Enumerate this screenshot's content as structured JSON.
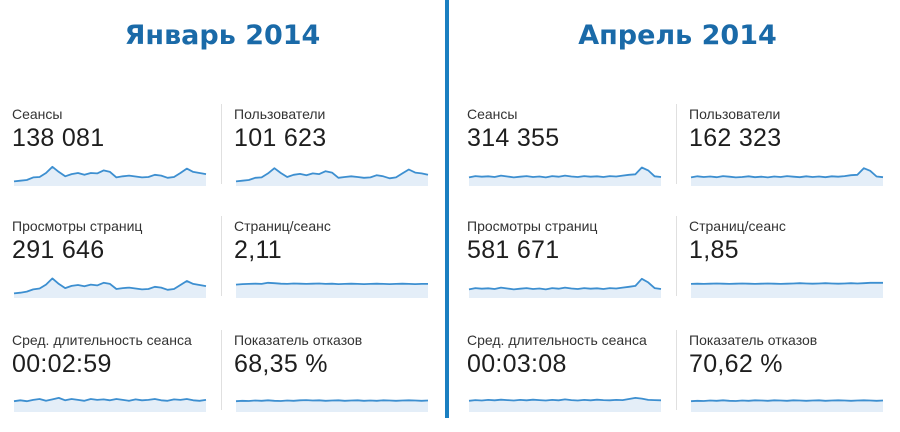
{
  "panels": [
    {
      "title": "Январь 2014",
      "metrics": [
        {
          "label": "Сеансы",
          "value": "138 081",
          "trend": [
            0.12,
            0.15,
            0.18,
            0.3,
            0.32,
            0.5,
            0.78,
            0.55,
            0.35,
            0.45,
            0.5,
            0.42,
            0.5,
            0.48,
            0.62,
            0.55,
            0.3,
            0.35,
            0.38,
            0.34,
            0.3,
            0.32,
            0.42,
            0.38,
            0.28,
            0.32,
            0.5,
            0.7,
            0.55,
            0.5,
            0.45
          ]
        },
        {
          "label": "Пользователи",
          "value": "101 623",
          "trend": [
            0.12,
            0.15,
            0.18,
            0.28,
            0.3,
            0.48,
            0.72,
            0.5,
            0.32,
            0.42,
            0.46,
            0.4,
            0.48,
            0.45,
            0.58,
            0.52,
            0.28,
            0.32,
            0.35,
            0.32,
            0.28,
            0.3,
            0.4,
            0.35,
            0.26,
            0.3,
            0.48,
            0.66,
            0.52,
            0.48,
            0.42
          ]
        },
        {
          "label": "Просмотры страниц",
          "value": "291 646",
          "trend": [
            0.12,
            0.15,
            0.2,
            0.3,
            0.34,
            0.52,
            0.8,
            0.55,
            0.36,
            0.46,
            0.5,
            0.44,
            0.52,
            0.48,
            0.6,
            0.55,
            0.32,
            0.36,
            0.38,
            0.34,
            0.3,
            0.32,
            0.42,
            0.38,
            0.28,
            0.32,
            0.5,
            0.68,
            0.55,
            0.5,
            0.45
          ]
        },
        {
          "label": "Страниц/сеанс",
          "value": "2,11",
          "trend": [
            0.52,
            0.54,
            0.55,
            0.56,
            0.55,
            0.6,
            0.58,
            0.56,
            0.55,
            0.57,
            0.56,
            0.55,
            0.56,
            0.57,
            0.55,
            0.56,
            0.54,
            0.55,
            0.56,
            0.55,
            0.54,
            0.55,
            0.56,
            0.55,
            0.54,
            0.55,
            0.56,
            0.55,
            0.54,
            0.55,
            0.55
          ]
        },
        {
          "label": "Сред. длительность сеанса",
          "value": "00:02:59",
          "trend": [
            0.4,
            0.44,
            0.4,
            0.46,
            0.5,
            0.42,
            0.48,
            0.55,
            0.44,
            0.5,
            0.46,
            0.42,
            0.5,
            0.46,
            0.48,
            0.44,
            0.5,
            0.46,
            0.42,
            0.48,
            0.44,
            0.46,
            0.5,
            0.44,
            0.42,
            0.48,
            0.46,
            0.5,
            0.44,
            0.42,
            0.46
          ]
        },
        {
          "label": "Показатель отказов",
          "value": "68,35 %",
          "trend": [
            0.4,
            0.42,
            0.41,
            0.43,
            0.42,
            0.44,
            0.42,
            0.41,
            0.43,
            0.42,
            0.44,
            0.45,
            0.43,
            0.44,
            0.42,
            0.43,
            0.44,
            0.42,
            0.43,
            0.44,
            0.42,
            0.43,
            0.42,
            0.44,
            0.43,
            0.42,
            0.43,
            0.44,
            0.43,
            0.42,
            0.43
          ]
        }
      ]
    },
    {
      "title": "Апрель 2014",
      "metrics": [
        {
          "label": "Сеансы",
          "value": "314 355",
          "trend": [
            0.3,
            0.36,
            0.33,
            0.35,
            0.32,
            0.38,
            0.34,
            0.3,
            0.33,
            0.36,
            0.32,
            0.34,
            0.3,
            0.36,
            0.33,
            0.38,
            0.34,
            0.32,
            0.36,
            0.33,
            0.35,
            0.32,
            0.36,
            0.34,
            0.38,
            0.42,
            0.44,
            0.75,
            0.62,
            0.35,
            0.32
          ]
        },
        {
          "label": "Пользователи",
          "value": "162 323",
          "trend": [
            0.3,
            0.35,
            0.32,
            0.34,
            0.31,
            0.36,
            0.33,
            0.3,
            0.32,
            0.35,
            0.31,
            0.33,
            0.3,
            0.34,
            0.32,
            0.36,
            0.33,
            0.31,
            0.35,
            0.32,
            0.34,
            0.31,
            0.35,
            0.33,
            0.36,
            0.4,
            0.42,
            0.72,
            0.6,
            0.34,
            0.31
          ]
        },
        {
          "label": "Просмотры страниц",
          "value": "581 671",
          "trend": [
            0.3,
            0.36,
            0.33,
            0.35,
            0.32,
            0.38,
            0.34,
            0.3,
            0.33,
            0.36,
            0.32,
            0.34,
            0.3,
            0.36,
            0.33,
            0.38,
            0.34,
            0.32,
            0.36,
            0.33,
            0.35,
            0.32,
            0.36,
            0.34,
            0.38,
            0.42,
            0.46,
            0.78,
            0.62,
            0.36,
            0.32
          ]
        },
        {
          "label": "Страниц/сеанс",
          "value": "1,85",
          "trend": [
            0.55,
            0.56,
            0.55,
            0.56,
            0.57,
            0.56,
            0.55,
            0.56,
            0.57,
            0.56,
            0.55,
            0.56,
            0.57,
            0.56,
            0.55,
            0.56,
            0.57,
            0.58,
            0.57,
            0.56,
            0.57,
            0.58,
            0.57,
            0.56,
            0.57,
            0.58,
            0.57,
            0.58,
            0.6,
            0.6,
            0.6
          ]
        },
        {
          "label": "Сред. длительность сеанса",
          "value": "00:03:08",
          "trend": [
            0.42,
            0.45,
            0.43,
            0.46,
            0.44,
            0.47,
            0.45,
            0.43,
            0.46,
            0.44,
            0.47,
            0.45,
            0.43,
            0.46,
            0.44,
            0.48,
            0.45,
            0.43,
            0.46,
            0.44,
            0.47,
            0.45,
            0.44,
            0.46,
            0.45,
            0.5,
            0.55,
            0.52,
            0.46,
            0.45,
            0.44
          ]
        },
        {
          "label": "Показатель отказов",
          "value": "70,62 %",
          "trend": [
            0.4,
            0.42,
            0.41,
            0.43,
            0.42,
            0.44,
            0.42,
            0.41,
            0.43,
            0.42,
            0.44,
            0.43,
            0.42,
            0.44,
            0.43,
            0.42,
            0.44,
            0.43,
            0.42,
            0.43,
            0.44,
            0.42,
            0.43,
            0.44,
            0.43,
            0.42,
            0.43,
            0.44,
            0.43,
            0.42,
            0.43
          ]
        }
      ]
    }
  ],
  "colors": {
    "title": "#1a6aa8",
    "divider": "#1a7fc1",
    "sparkline_line": "#3d8fd0",
    "sparkline_fill": "#e4eef8"
  }
}
